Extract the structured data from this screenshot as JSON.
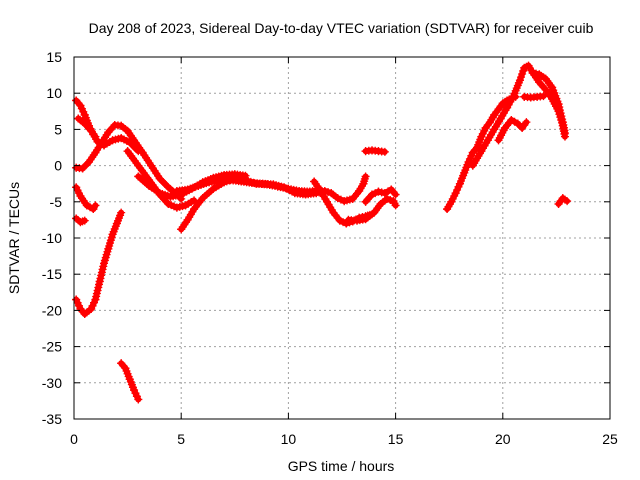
{
  "chart_data": {
    "type": "scatter",
    "title": "Day 208 of 2023, Sidereal Day-to-day VTEC variation (SDTVAR) for receiver cuib",
    "xlabel": "GPS time / hours",
    "ylabel": "SDTVAR / TECUs",
    "xlim": [
      0,
      25
    ],
    "ylim": [
      -35,
      15
    ],
    "x_ticks": [
      "0",
      "5",
      "10",
      "15",
      "20",
      "25"
    ],
    "y_ticks": [
      "15",
      "10",
      "5",
      "0",
      "-5",
      "-10",
      "-15",
      "-20",
      "-25",
      "-30",
      "-35"
    ],
    "grid": true,
    "marker": "plus",
    "color": "#ff0000",
    "series": [
      {
        "name": "track-1",
        "points": [
          [
            0.1,
            -18.5
          ],
          [
            0.3,
            -19.8
          ],
          [
            0.5,
            -20.5
          ],
          [
            0.8,
            -19.8
          ],
          [
            1.0,
            -18.5
          ],
          [
            1.2,
            -16.0
          ],
          [
            1.4,
            -13.5
          ],
          [
            1.6,
            -11.5
          ],
          [
            1.8,
            -9.5
          ],
          [
            2.0,
            -8.0
          ],
          [
            2.2,
            -6.5
          ]
        ]
      },
      {
        "name": "track-2",
        "points": [
          [
            2.2,
            -27.3
          ],
          [
            2.4,
            -28.0
          ],
          [
            2.6,
            -29.5
          ],
          [
            2.8,
            -31.0
          ],
          [
            3.0,
            -32.3
          ]
        ]
      },
      {
        "name": "track-3",
        "points": [
          [
            0.1,
            -3.0
          ],
          [
            0.3,
            -4.2
          ],
          [
            0.6,
            -5.5
          ],
          [
            0.9,
            -6.0
          ],
          [
            1.0,
            -5.5
          ]
        ]
      },
      {
        "name": "track-4",
        "points": [
          [
            0.1,
            -7.3
          ],
          [
            0.3,
            -7.8
          ],
          [
            0.5,
            -7.6
          ]
        ]
      },
      {
        "name": "track-5",
        "points": [
          [
            0.1,
            9.0
          ],
          [
            0.3,
            8.3
          ],
          [
            0.5,
            7.0
          ],
          [
            0.7,
            5.5
          ],
          [
            0.9,
            4.3
          ],
          [
            1.1,
            3.3
          ],
          [
            1.4,
            2.8
          ],
          [
            1.8,
            3.5
          ],
          [
            2.2,
            3.8
          ],
          [
            2.6,
            3.2
          ],
          [
            3.0,
            2.0
          ]
        ]
      },
      {
        "name": "track-6",
        "points": [
          [
            0.2,
            6.5
          ],
          [
            0.5,
            5.8
          ],
          [
            0.8,
            4.8
          ],
          [
            1.0,
            4.0
          ]
        ]
      },
      {
        "name": "track-7",
        "points": [
          [
            0.1,
            -0.3
          ],
          [
            0.4,
            -0.4
          ],
          [
            0.7,
            0.5
          ],
          [
            1.0,
            1.8
          ],
          [
            1.3,
            3.2
          ],
          [
            1.6,
            4.6
          ],
          [
            1.9,
            5.6
          ],
          [
            2.2,
            5.5
          ],
          [
            2.5,
            4.8
          ],
          [
            2.8,
            3.5
          ],
          [
            3.2,
            1.8
          ],
          [
            3.6,
            0.0
          ],
          [
            4.0,
            -1.8
          ],
          [
            4.4,
            -3.0
          ],
          [
            4.8,
            -4.0
          ],
          [
            5.0,
            -4.6
          ]
        ]
      },
      {
        "name": "track-8",
        "points": [
          [
            2.5,
            2.0
          ],
          [
            3.0,
            0.0
          ],
          [
            3.5,
            -2.0
          ],
          [
            4.0,
            -4.0
          ],
          [
            4.4,
            -5.3
          ],
          [
            4.8,
            -5.8
          ],
          [
            5.2,
            -5.5
          ],
          [
            5.6,
            -4.8
          ]
        ]
      },
      {
        "name": "track-9",
        "points": [
          [
            3.0,
            -1.5
          ],
          [
            3.5,
            -2.8
          ],
          [
            4.0,
            -3.8
          ],
          [
            4.5,
            -4.3
          ],
          [
            5.0,
            -4.0
          ],
          [
            5.5,
            -3.2
          ],
          [
            6.0,
            -2.3
          ],
          [
            6.5,
            -1.7
          ],
          [
            7.0,
            -1.3
          ],
          [
            7.5,
            -1.2
          ],
          [
            8.0,
            -1.4
          ]
        ]
      },
      {
        "name": "track-10",
        "points": [
          [
            5.0,
            -8.8
          ],
          [
            5.3,
            -7.5
          ],
          [
            5.6,
            -6.0
          ],
          [
            6.0,
            -4.5
          ],
          [
            6.5,
            -3.2
          ],
          [
            7.0,
            -2.3
          ],
          [
            7.5,
            -1.8
          ],
          [
            8.0,
            -2.0
          ],
          [
            8.5,
            -2.5
          ],
          [
            9.0,
            -2.6
          ],
          [
            9.5,
            -2.9
          ],
          [
            10.0,
            -3.2
          ],
          [
            10.5,
            -3.5
          ],
          [
            11.0,
            -3.6
          ],
          [
            11.5,
            -3.3
          ]
        ]
      },
      {
        "name": "track-11",
        "points": [
          [
            4.8,
            -3.5
          ],
          [
            5.3,
            -3.3
          ],
          [
            5.8,
            -2.8
          ],
          [
            6.3,
            -2.3
          ],
          [
            6.8,
            -2.0
          ],
          [
            7.3,
            -2.0
          ],
          [
            7.8,
            -2.2
          ],
          [
            8.3,
            -2.4
          ],
          [
            8.8,
            -2.5
          ],
          [
            9.3,
            -2.6
          ],
          [
            9.8,
            -3.0
          ],
          [
            10.3,
            -3.8
          ],
          [
            10.8,
            -4.0
          ],
          [
            11.3,
            -3.8
          ],
          [
            11.7,
            -3.5
          ],
          [
            12.0,
            -3.8
          ],
          [
            12.3,
            -4.5
          ],
          [
            12.6,
            -4.9
          ],
          [
            13.0,
            -4.6
          ],
          [
            13.3,
            -3.5
          ],
          [
            13.5,
            -2.5
          ],
          [
            13.6,
            -1.5
          ]
        ]
      },
      {
        "name": "track-12",
        "points": [
          [
            11.2,
            -2.2
          ],
          [
            11.5,
            -3.5
          ],
          [
            11.8,
            -5.0
          ],
          [
            12.1,
            -6.5
          ],
          [
            12.4,
            -7.6
          ],
          [
            12.7,
            -8.0
          ],
          [
            13.0,
            -7.7
          ],
          [
            13.3,
            -7.2
          ],
          [
            13.6,
            -7.0
          ],
          [
            13.8,
            -6.8
          ]
        ]
      },
      {
        "name": "track-13",
        "points": [
          [
            12.8,
            -7.5
          ],
          [
            13.2,
            -7.6
          ],
          [
            13.6,
            -7.4
          ],
          [
            14.0,
            -6.5
          ],
          [
            14.3,
            -5.3
          ],
          [
            14.6,
            -4.6
          ],
          [
            14.9,
            -4.9
          ],
          [
            15.0,
            -5.5
          ]
        ]
      },
      {
        "name": "track-14",
        "points": [
          [
            13.6,
            -5.0
          ],
          [
            13.9,
            -4.0
          ],
          [
            14.2,
            -3.6
          ],
          [
            14.5,
            -3.8
          ],
          [
            14.8,
            -3.3
          ],
          [
            15.0,
            -4.0
          ]
        ]
      },
      {
        "name": "track-15",
        "points": [
          [
            13.6,
            2.0
          ],
          [
            13.9,
            2.1
          ],
          [
            14.2,
            2.0
          ],
          [
            14.5,
            1.9
          ]
        ]
      },
      {
        "name": "track-16",
        "points": [
          [
            17.4,
            -6.0
          ],
          [
            17.6,
            -5.0
          ],
          [
            17.8,
            -3.8
          ],
          [
            18.0,
            -2.5
          ],
          [
            18.2,
            -1.0
          ],
          [
            18.4,
            0.5
          ],
          [
            18.6,
            1.8
          ],
          [
            18.8,
            2.5
          ],
          [
            19.0,
            4.0
          ],
          [
            19.2,
            5.2
          ],
          [
            19.4,
            6.0
          ],
          [
            19.6,
            7.0
          ],
          [
            19.8,
            7.8
          ],
          [
            20.0,
            8.6
          ],
          [
            20.2,
            9.0
          ],
          [
            20.4,
            9.3
          ],
          [
            20.6,
            9.5
          ]
        ]
      },
      {
        "name": "track-17",
        "points": [
          [
            18.6,
            0.0
          ],
          [
            19.0,
            2.0
          ],
          [
            19.3,
            3.5
          ],
          [
            19.6,
            5.0
          ],
          [
            19.9,
            6.5
          ],
          [
            20.2,
            8.0
          ],
          [
            20.5,
            9.6
          ],
          [
            20.8,
            11.8
          ],
          [
            21.0,
            13.5
          ],
          [
            21.2,
            13.8
          ],
          [
            21.4,
            12.8
          ],
          [
            21.7,
            11.5
          ],
          [
            22.0,
            10.5
          ],
          [
            22.3,
            9.2
          ],
          [
            22.6,
            7.5
          ],
          [
            22.8,
            5.5
          ],
          [
            22.9,
            4.0
          ]
        ]
      },
      {
        "name": "track-18",
        "points": [
          [
            19.8,
            3.5
          ],
          [
            20.1,
            5.2
          ],
          [
            20.4,
            6.3
          ],
          [
            20.7,
            5.8
          ],
          [
            20.9,
            5.2
          ],
          [
            21.1,
            6.0
          ]
        ]
      },
      {
        "name": "track-19",
        "points": [
          [
            21.0,
            9.5
          ],
          [
            21.3,
            9.4
          ],
          [
            21.6,
            9.5
          ],
          [
            21.9,
            9.6
          ]
        ]
      },
      {
        "name": "track-20",
        "points": [
          [
            21.4,
            12.8
          ],
          [
            21.7,
            12.6
          ],
          [
            22.0,
            12.0
          ],
          [
            22.3,
            10.8
          ],
          [
            22.6,
            8.5
          ],
          [
            22.8,
            6.0
          ],
          [
            22.9,
            4.5
          ]
        ]
      },
      {
        "name": "track-21",
        "points": [
          [
            22.6,
            -5.3
          ],
          [
            22.8,
            -4.5
          ],
          [
            23.0,
            -4.9
          ]
        ]
      }
    ]
  }
}
